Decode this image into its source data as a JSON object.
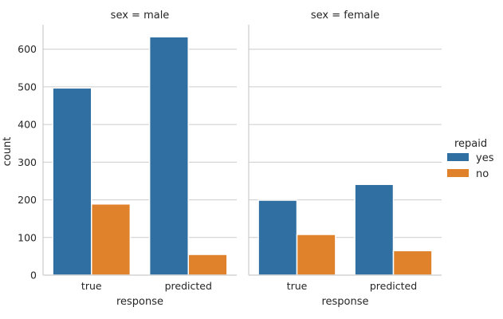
{
  "chart_data": {
    "type": "bar",
    "ylabel": "count",
    "yticks": [
      0,
      100,
      200,
      300,
      400,
      500,
      600
    ],
    "ylim": [
      0,
      665
    ],
    "grid": "horizontal",
    "legend": {
      "title": "repaid",
      "placement": "right",
      "entries": [
        "yes",
        "no"
      ]
    },
    "colors": {
      "yes": "#2f6fa2",
      "no": "#e0822b"
    },
    "panels": [
      {
        "title": "sex = male",
        "xlabel": "response",
        "categories": [
          "true",
          "predicted"
        ],
        "series": [
          {
            "name": "yes",
            "values": [
              497,
              633
            ]
          },
          {
            "name": "no",
            "values": [
              189,
              55
            ]
          }
        ]
      },
      {
        "title": "sex = female",
        "xlabel": "response",
        "categories": [
          "true",
          "predicted"
        ],
        "series": [
          {
            "name": "yes",
            "values": [
              199,
              241
            ]
          },
          {
            "name": "no",
            "values": [
              108,
              65
            ]
          }
        ]
      }
    ]
  }
}
